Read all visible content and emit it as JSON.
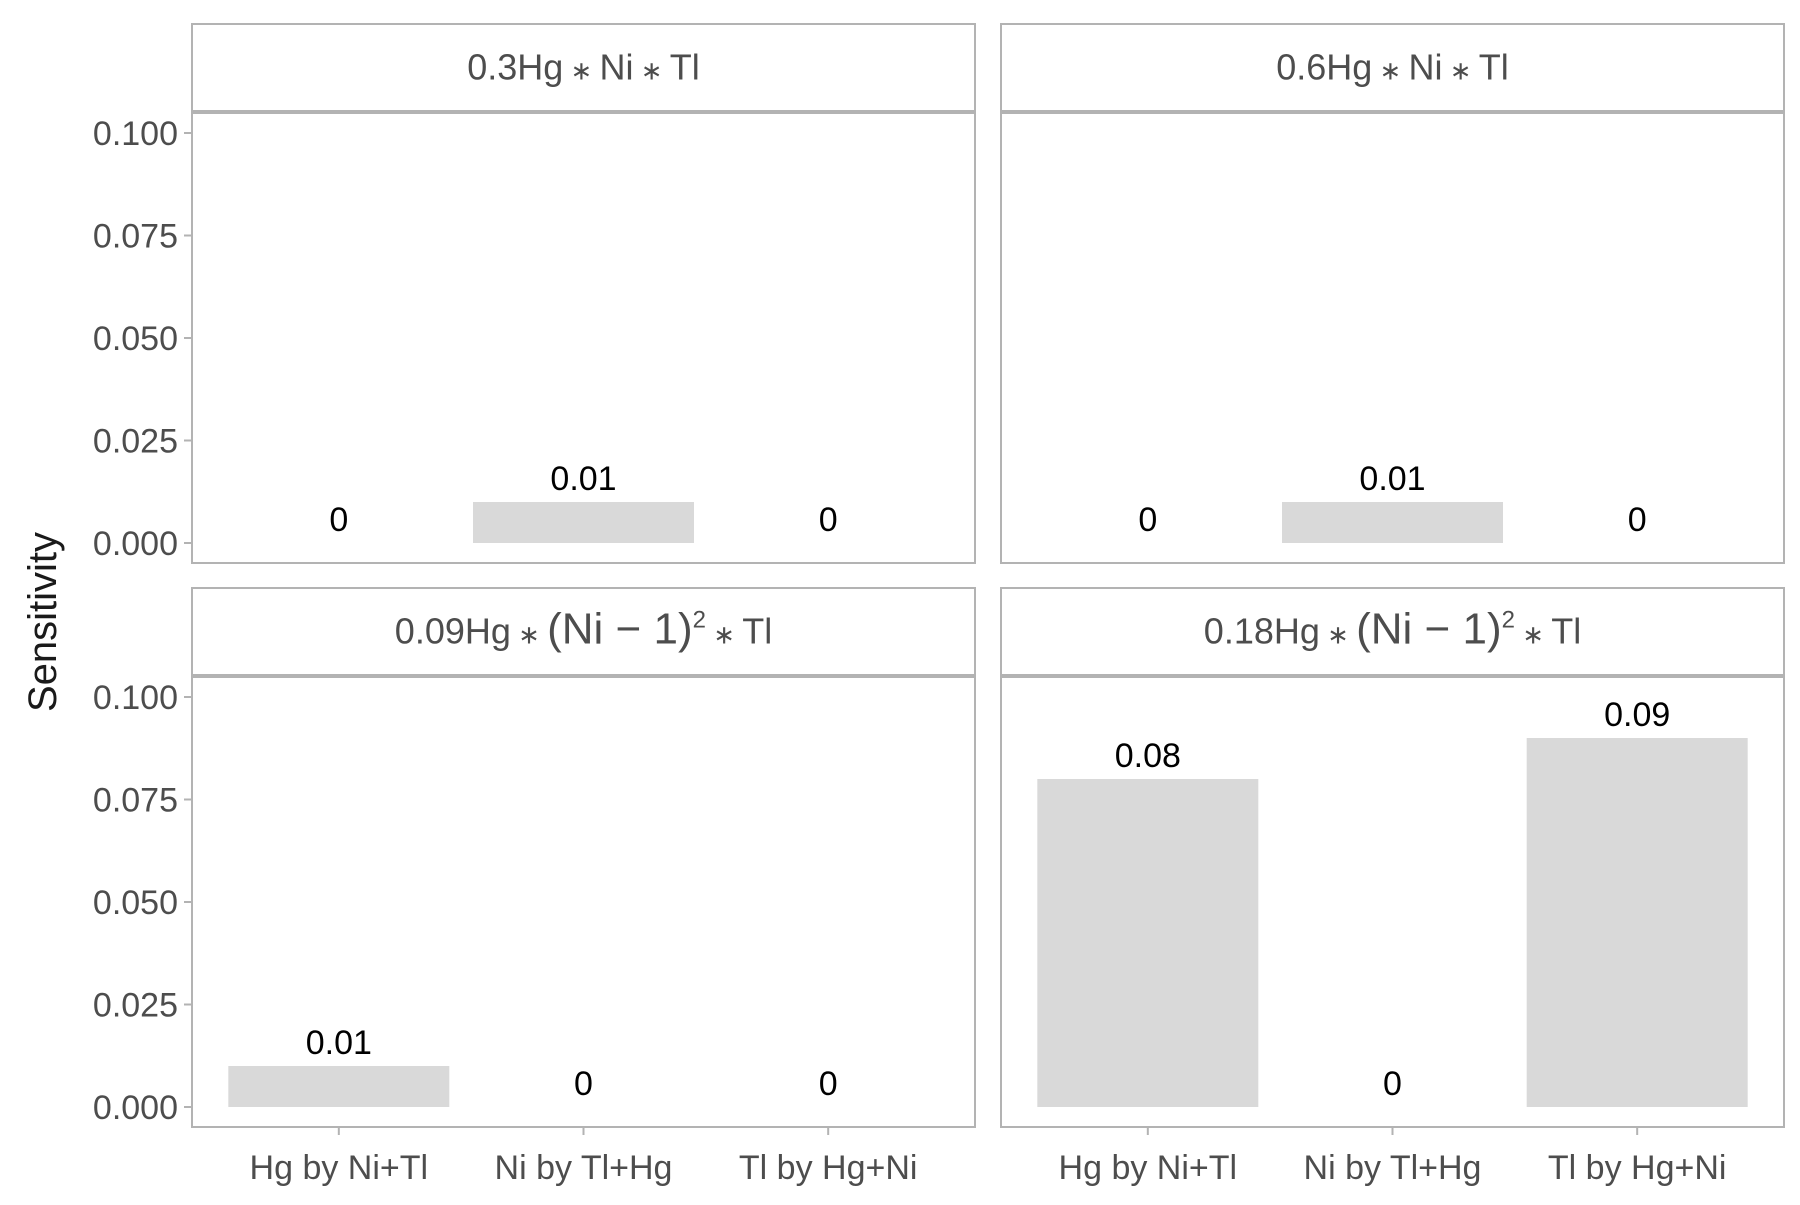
{
  "chart_data": {
    "type": "bar",
    "ylabel": "Sensitivity",
    "ylim": [
      0,
      0.1
    ],
    "yticks": [
      "0.000",
      "0.025",
      "0.050",
      "0.075",
      "0.100"
    ],
    "categories": [
      "Hg by Ni+Tl",
      "Ni by Tl+Hg",
      "Tl by Hg+Ni"
    ],
    "bar_color": "#d9d9d9",
    "panels": [
      {
        "title": {
          "pre": "0.3Hg",
          "op1": "∗",
          "mid": "Ni",
          "op2": "∗",
          "post": "Tl",
          "squared": false
        },
        "values": [
          0,
          0.01,
          0
        ],
        "labels": [
          "0",
          "0.01",
          "0"
        ]
      },
      {
        "title": {
          "pre": "0.6Hg",
          "op1": "∗",
          "mid": "Ni",
          "op2": "∗",
          "post": "Tl",
          "squared": false
        },
        "values": [
          0,
          0.01,
          0
        ],
        "labels": [
          "0",
          "0.01",
          "0"
        ]
      },
      {
        "title": {
          "pre": "0.09Hg",
          "op1": "∗",
          "mid": "(Ni − 1)",
          "sup": "2",
          "op2": "∗",
          "post": "Tl",
          "squared": true
        },
        "values": [
          0.01,
          0,
          0
        ],
        "labels": [
          "0.01",
          "0",
          "0"
        ]
      },
      {
        "title": {
          "pre": "0.18Hg",
          "op1": "∗",
          "mid": "(Ni − 1)",
          "sup": "2",
          "op2": "∗",
          "post": "Tl",
          "squared": true
        },
        "values": [
          0.08,
          0,
          0.09
        ],
        "labels": [
          "0.08",
          "0",
          "0.09"
        ]
      }
    ]
  }
}
